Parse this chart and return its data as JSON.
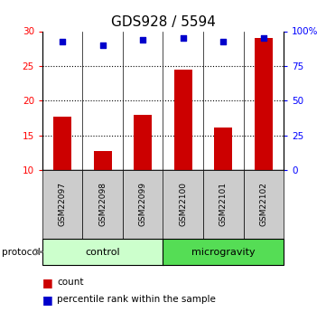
{
  "title": "GDS928 / 5594",
  "samples": [
    "GSM22097",
    "GSM22098",
    "GSM22099",
    "GSM22100",
    "GSM22101",
    "GSM22102"
  ],
  "bar_values": [
    17.7,
    12.7,
    18.0,
    24.5,
    16.1,
    29.0
  ],
  "scatter_values_left": [
    28.5,
    28.0,
    28.7,
    29.0,
    28.5,
    29.0
  ],
  "ylim_left": [
    10,
    30
  ],
  "ylim_right": [
    0,
    100
  ],
  "yticks_left": [
    10,
    15,
    20,
    25,
    30
  ],
  "yticks_right": [
    0,
    25,
    50,
    75,
    100
  ],
  "ytick_labels_right": [
    "0",
    "25",
    "50",
    "75",
    "100%"
  ],
  "bar_color": "#cc0000",
  "scatter_color": "#0000cc",
  "groups": [
    {
      "label": "control",
      "span": [
        0,
        2
      ],
      "color": "#ccffcc"
    },
    {
      "label": "microgravity",
      "span": [
        3,
        5
      ],
      "color": "#55dd55"
    }
  ],
  "protocol_label": "protocol",
  "legend_bar_label": "count",
  "legend_scatter_label": "percentile rank within the sample",
  "dotted_levels": [
    15,
    20,
    25
  ],
  "bar_width": 0.45,
  "sample_box_color": "#cccccc",
  "plot_bg": "#ffffff"
}
